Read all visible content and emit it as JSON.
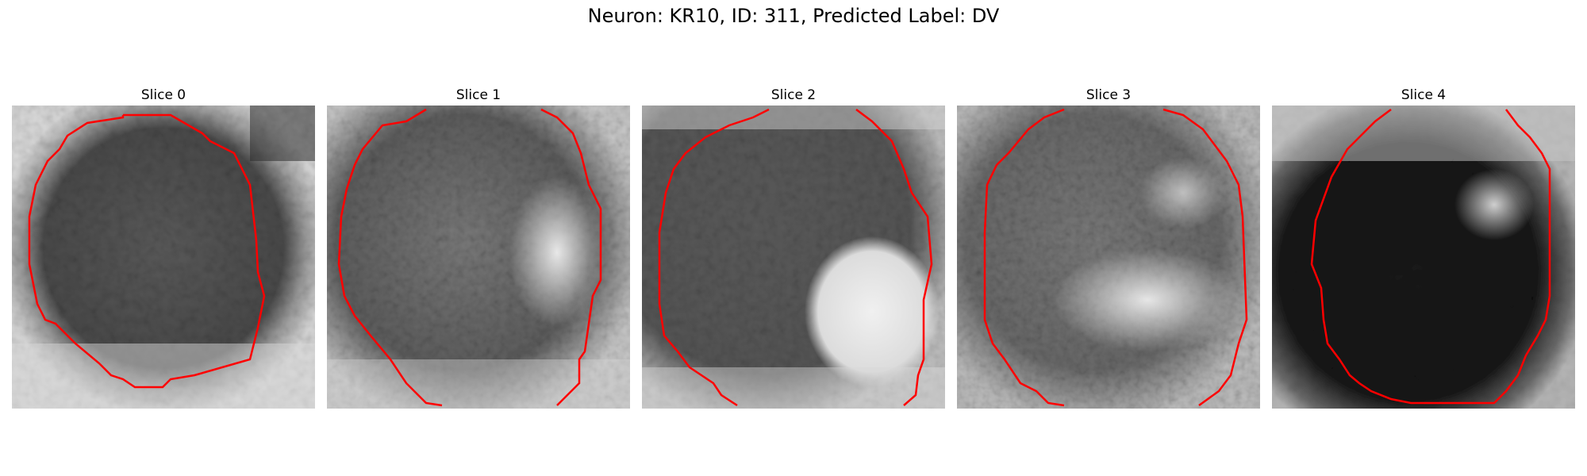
{
  "figure": {
    "title": "Neuron: KR10, ID: 311, Predicted Label: DV"
  },
  "panels": [
    {
      "title": "Slice 0",
      "image_desc": "grayscale-slice-with-contour"
    },
    {
      "title": "Slice 1",
      "image_desc": "grayscale-slice-with-contour"
    },
    {
      "title": "Slice 2",
      "image_desc": "grayscale-slice-with-contour"
    },
    {
      "title": "Slice 3",
      "image_desc": "grayscale-slice-with-contour"
    },
    {
      "title": "Slice 4",
      "image_desc": "grayscale-slice-with-contour"
    }
  ],
  "colors": {
    "contour": "#ff0000",
    "background": "#ffffff"
  }
}
